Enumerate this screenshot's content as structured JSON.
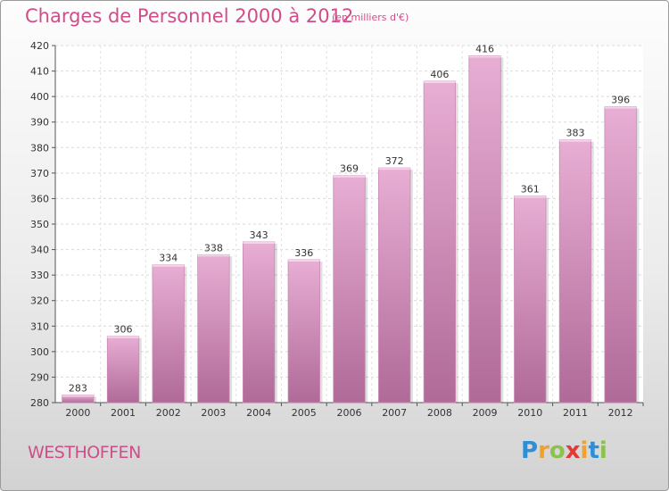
{
  "title": "Charges de Personnel 2000 à 2012",
  "subtitle": "(en milliers d'€)",
  "town": "WESTHOFFEN",
  "logo": {
    "text": "Proxiti",
    "letters": [
      {
        "ch": "P",
        "color": "#2f8fd6"
      },
      {
        "ch": "r",
        "color": "#f0a12a"
      },
      {
        "ch": "o",
        "color": "#8bc34a"
      },
      {
        "ch": "x",
        "color": "#e53935"
      },
      {
        "ch": "i",
        "color": "#f0a12a"
      },
      {
        "ch": "t",
        "color": "#2f8fd6"
      },
      {
        "ch": "i",
        "color": "#8bc34a"
      }
    ]
  },
  "chart_data": {
    "type": "bar",
    "categories": [
      "2000",
      "2001",
      "2002",
      "2003",
      "2004",
      "2005",
      "2006",
      "2007",
      "2008",
      "2009",
      "2010",
      "2011",
      "2012"
    ],
    "values": [
      283,
      306,
      334,
      338,
      343,
      336,
      369,
      372,
      406,
      416,
      361,
      383,
      396
    ],
    "yticks": [
      280,
      290,
      300,
      310,
      320,
      330,
      340,
      350,
      360,
      370,
      380,
      390,
      400,
      410,
      420
    ],
    "ylim": [
      280,
      420
    ],
    "bar_color": "#dc9ec6",
    "grid": true
  }
}
